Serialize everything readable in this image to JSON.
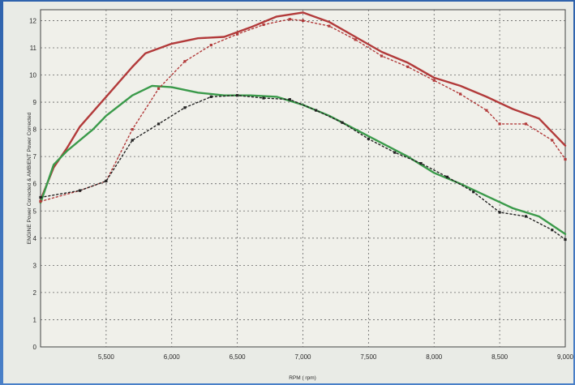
{
  "chart_data": {
    "type": "line",
    "title": "",
    "xlabel": "RPM ( rpm)",
    "ylabel": "ENGINE Power Corrected & AMBIENT Power Corrected",
    "xlim": [
      5000,
      9000
    ],
    "ylim": [
      0,
      12.4
    ],
    "x_ticks": [
      5500,
      6000,
      6500,
      7000,
      7500,
      8000,
      8500,
      9000
    ],
    "x_tick_labels": [
      "5,500",
      "6,000",
      "6,500",
      "7,000",
      "7,500",
      "8,000",
      "8,500",
      "9,000"
    ],
    "y_ticks": [
      0,
      1,
      2,
      3,
      4,
      5,
      6,
      7,
      8,
      9,
      10,
      11,
      12
    ],
    "y_tick_labels": [
      "0",
      "1",
      "2",
      "3",
      "4",
      "5",
      "6",
      "7",
      "8",
      "9",
      "10",
      "11",
      "12"
    ],
    "grid": true,
    "series": [
      {
        "color": "#b23a3a",
        "style": "solid",
        "points": [
          [
            5000,
            5.4
          ],
          [
            5100,
            6.6
          ],
          [
            5200,
            7.3
          ],
          [
            5300,
            8.1
          ],
          [
            5500,
            9.2
          ],
          [
            5700,
            10.3
          ],
          [
            5800,
            10.8
          ],
          [
            6000,
            11.15
          ],
          [
            6200,
            11.35
          ],
          [
            6400,
            11.4
          ],
          [
            6600,
            11.75
          ],
          [
            6800,
            12.15
          ],
          [
            7000,
            12.3
          ],
          [
            7200,
            11.95
          ],
          [
            7400,
            11.4
          ],
          [
            7600,
            10.85
          ],
          [
            7800,
            10.45
          ],
          [
            8000,
            9.9
          ],
          [
            8200,
            9.6
          ],
          [
            8400,
            9.2
          ],
          [
            8600,
            8.75
          ],
          [
            8800,
            8.4
          ],
          [
            9000,
            7.4
          ]
        ]
      },
      {
        "color": "#3a9a4a",
        "style": "solid",
        "points": [
          [
            5000,
            5.3
          ],
          [
            5100,
            6.7
          ],
          [
            5200,
            7.2
          ],
          [
            5400,
            8.0
          ],
          [
            5500,
            8.5
          ],
          [
            5700,
            9.25
          ],
          [
            5850,
            9.6
          ],
          [
            6000,
            9.55
          ],
          [
            6200,
            9.35
          ],
          [
            6400,
            9.25
          ],
          [
            6600,
            9.25
          ],
          [
            6800,
            9.2
          ],
          [
            7000,
            8.9
          ],
          [
            7200,
            8.5
          ],
          [
            7400,
            8.0
          ],
          [
            7600,
            7.5
          ],
          [
            7800,
            7.0
          ],
          [
            8000,
            6.4
          ],
          [
            8200,
            6.0
          ],
          [
            8400,
            5.55
          ],
          [
            8600,
            5.1
          ],
          [
            8800,
            4.8
          ],
          [
            9000,
            4.15
          ]
        ]
      },
      {
        "color": "#b23a3a",
        "style": "dotted",
        "points": [
          [
            5000,
            5.35
          ],
          [
            5300,
            5.75
          ],
          [
            5500,
            6.1
          ],
          [
            5700,
            8.0
          ],
          [
            5900,
            9.5
          ],
          [
            6100,
            10.5
          ],
          [
            6300,
            11.1
          ],
          [
            6500,
            11.5
          ],
          [
            6700,
            11.85
          ],
          [
            6900,
            12.05
          ],
          [
            7000,
            12.0
          ],
          [
            7200,
            11.8
          ],
          [
            7400,
            11.3
          ],
          [
            7600,
            10.7
          ],
          [
            7800,
            10.3
          ],
          [
            8000,
            9.8
          ],
          [
            8200,
            9.3
          ],
          [
            8400,
            8.7
          ],
          [
            8500,
            8.2
          ],
          [
            8700,
            8.2
          ],
          [
            8900,
            7.6
          ],
          [
            9000,
            6.9
          ]
        ]
      },
      {
        "color": "#222222",
        "style": "dotted",
        "points": [
          [
            5000,
            5.5
          ],
          [
            5300,
            5.75
          ],
          [
            5500,
            6.1
          ],
          [
            5700,
            7.6
          ],
          [
            5900,
            8.2
          ],
          [
            6100,
            8.8
          ],
          [
            6300,
            9.2
          ],
          [
            6500,
            9.25
          ],
          [
            6700,
            9.15
          ],
          [
            6900,
            9.1
          ],
          [
            7100,
            8.7
          ],
          [
            7300,
            8.25
          ],
          [
            7500,
            7.65
          ],
          [
            7700,
            7.15
          ],
          [
            7900,
            6.75
          ],
          [
            8100,
            6.25
          ],
          [
            8300,
            5.7
          ],
          [
            8500,
            4.95
          ],
          [
            8700,
            4.8
          ],
          [
            8900,
            4.3
          ],
          [
            9000,
            3.95
          ]
        ]
      }
    ]
  }
}
